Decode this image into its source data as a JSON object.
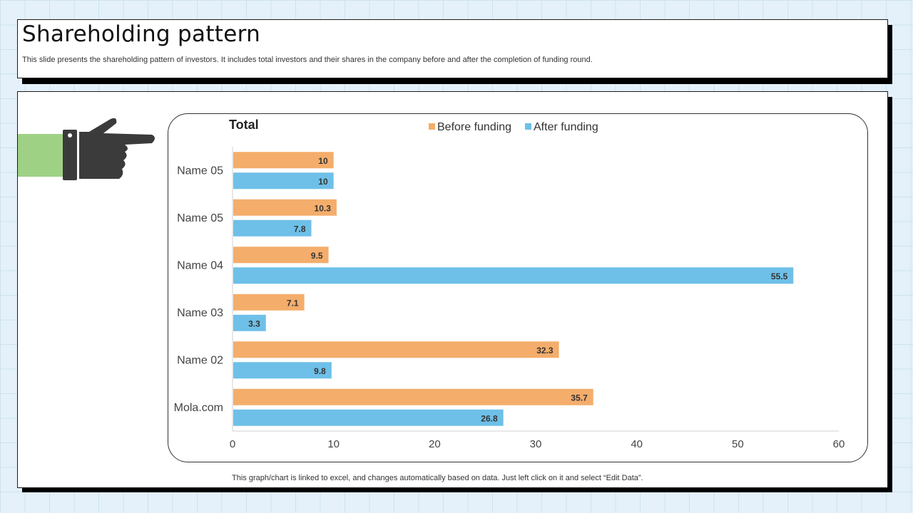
{
  "header": {
    "title": "Shareholding pattern",
    "subtitle": "This slide presents the shareholding pattern of investors. It includes total investors and their shares in the company before and after the completion of funding round."
  },
  "footnote": "This graph/chart is linked to excel,  and changes automatically based on data. Just left click on it and select “Edit Data”.",
  "colors": {
    "before": "#f4ad6b",
    "after": "#6ec0e8",
    "hand": "#3b3b3b",
    "sleeve": "#9fd185"
  },
  "chart_data": {
    "type": "bar",
    "orientation": "horizontal",
    "title": "Total",
    "categories": [
      "Name 05",
      "Name 05",
      "Name 04",
      "Name 03",
      "Name 02",
      "Mola.com"
    ],
    "series": [
      {
        "name": "Before funding",
        "values": [
          10,
          10.3,
          9.5,
          7.1,
          32.3,
          35.7
        ],
        "labels": [
          "10",
          "10.3",
          "9.5",
          "7.1",
          "32.3",
          "35.7"
        ]
      },
      {
        "name": "After funding",
        "values": [
          10,
          7.8,
          55.5,
          3.3,
          9.8,
          26.8
        ],
        "labels": [
          "10",
          "7.8",
          "55.5",
          "3.3",
          "9.8",
          "26.8"
        ]
      }
    ],
    "xlim": [
      0,
      60
    ],
    "xticks": [
      "0",
      "10",
      "20",
      "30",
      "40",
      "50",
      "60"
    ],
    "legend": "top-center",
    "grid": false,
    "xlabel": "",
    "ylabel": ""
  }
}
